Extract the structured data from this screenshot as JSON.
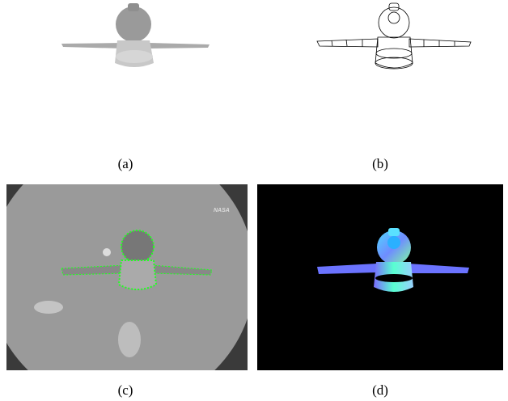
{
  "panels": [
    {
      "label": "(a)"
    },
    {
      "label": "(b)"
    },
    {
      "label": "(c)",
      "watermark": "NASA"
    },
    {
      "label": "(d)"
    }
  ]
}
